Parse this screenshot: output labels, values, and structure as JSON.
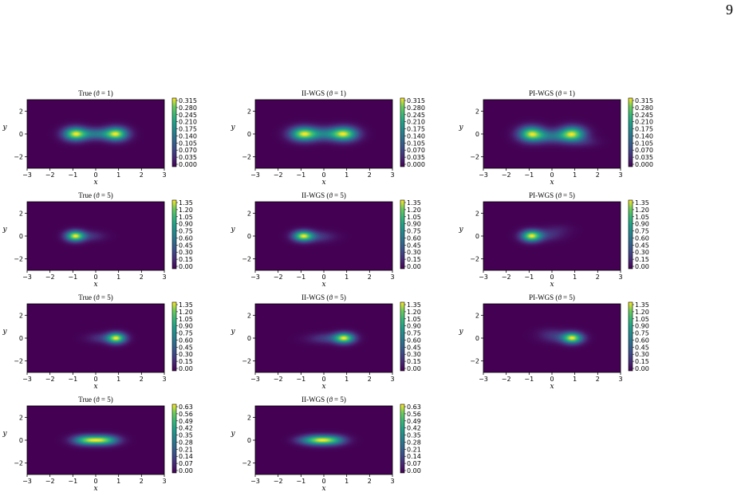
{
  "page_number": "9",
  "chart_data": [
    {
      "type": "heatmap",
      "title": "True (ϑ = 1)",
      "xlabel": "x",
      "ylabel": "y",
      "xlim": [
        -3,
        3
      ],
      "ylim": [
        -3,
        3
      ],
      "xticks": [
        "−3",
        "−2",
        "−1",
        "0",
        "1",
        "2",
        "3"
      ],
      "yticks": [
        "2",
        "0",
        "−2"
      ],
      "colorbar": {
        "min": 0,
        "max": 0.315,
        "ticks": [
          "0.315",
          "0.280",
          "0.245",
          "0.210",
          "0.175",
          "0.140",
          "0.105",
          "0.070",
          "0.035",
          "0.000"
        ]
      },
      "density": {
        "blobs": [
          {
            "x": -0.9,
            "y": 0,
            "sx": 0.35,
            "sy": 0.4,
            "w": 1
          },
          {
            "x": 0.9,
            "y": 0,
            "sx": 0.35,
            "sy": 0.4,
            "w": 1
          },
          {
            "x": 0,
            "y": 0,
            "sx": 0.5,
            "sy": 0.35,
            "w": 0.45
          }
        ]
      }
    },
    {
      "type": "heatmap",
      "title": "II-WGS (ϑ = 1)",
      "xlabel": "x",
      "ylabel": "y",
      "xlim": [
        -3,
        3
      ],
      "ylim": [
        -3,
        3
      ],
      "xticks": [
        "−3",
        "−2",
        "−1",
        "0",
        "1",
        "2",
        "3"
      ],
      "yticks": [
        "2",
        "0",
        "−2"
      ],
      "colorbar": {
        "min": 0,
        "max": 0.315,
        "ticks": [
          "0.315",
          "0.280",
          "0.245",
          "0.210",
          "0.175",
          "0.140",
          "0.105",
          "0.070",
          "0.035",
          "0.000"
        ]
      },
      "density": {
        "blobs": [
          {
            "x": -0.9,
            "y": 0,
            "sx": 0.4,
            "sy": 0.42,
            "w": 0.95
          },
          {
            "x": 0.9,
            "y": 0,
            "sx": 0.4,
            "sy": 0.42,
            "w": 0.95
          },
          {
            "x": 0,
            "y": 0,
            "sx": 0.55,
            "sy": 0.4,
            "w": 0.42
          }
        ]
      }
    },
    {
      "type": "heatmap",
      "title": "PI-WGS (ϑ = 1)",
      "xlabel": "x",
      "ylabel": "y",
      "xlim": [
        -3,
        3
      ],
      "ylim": [
        -3,
        3
      ],
      "xticks": [
        "−3",
        "−2",
        "−1",
        "0",
        "1",
        "2",
        "3"
      ],
      "yticks": [
        "2",
        "0",
        "−2"
      ],
      "colorbar": {
        "min": 0,
        "max": 0.315,
        "ticks": [
          "0.315",
          "0.280",
          "0.245",
          "0.210",
          "0.175",
          "0.140",
          "0.105",
          "0.070",
          "0.035",
          "0.000"
        ]
      },
      "density": {
        "blobs": [
          {
            "x": -0.9,
            "y": 0,
            "sx": 0.38,
            "sy": 0.45,
            "w": 0.95
          },
          {
            "x": 0.9,
            "y": 0,
            "sx": 0.38,
            "sy": 0.45,
            "w": 0.95
          },
          {
            "x": 0,
            "y": -0.2,
            "sx": 0.6,
            "sy": 0.4,
            "w": 0.4
          },
          {
            "x": 1.5,
            "y": -0.7,
            "sx": 0.4,
            "sy": 0.3,
            "w": 0.1
          }
        ]
      }
    },
    {
      "type": "heatmap",
      "title": "True (ϑ = 5)",
      "xlabel": "x",
      "ylabel": "y",
      "xlim": [
        -3,
        3
      ],
      "ylim": [
        -3,
        3
      ],
      "xticks": [
        "−3",
        "−2",
        "−1",
        "0",
        "1",
        "2",
        "3"
      ],
      "yticks": [
        "2",
        "0",
        "−2"
      ],
      "colorbar": {
        "min": 0,
        "max": 1.35,
        "ticks": [
          "1.35",
          "1.20",
          "1.05",
          "0.90",
          "0.75",
          "0.60",
          "0.45",
          "0.30",
          "0.15",
          "0.00"
        ]
      },
      "density": {
        "blobs": [
          {
            "x": -0.9,
            "y": 0,
            "sx": 0.28,
            "sy": 0.32,
            "w": 1
          },
          {
            "x": -0.3,
            "y": 0,
            "sx": 0.45,
            "sy": 0.3,
            "w": 0.18
          }
        ]
      }
    },
    {
      "type": "heatmap",
      "title": "II-WGS (ϑ = 5)",
      "xlabel": "x",
      "ylabel": "y",
      "xlim": [
        -3,
        3
      ],
      "ylim": [
        -3,
        3
      ],
      "xticks": [
        "−3",
        "−2",
        "−1",
        "0",
        "1",
        "2",
        "3"
      ],
      "yticks": [
        "2",
        "0",
        "−2"
      ],
      "colorbar": {
        "min": 0,
        "max": 1.35,
        "ticks": [
          "1.35",
          "1.20",
          "1.05",
          "0.90",
          "0.75",
          "0.60",
          "0.45",
          "0.30",
          "0.15",
          "0.00"
        ]
      },
      "density": {
        "blobs": [
          {
            "x": -0.9,
            "y": 0,
            "sx": 0.3,
            "sy": 0.32,
            "w": 0.9
          },
          {
            "x": -0.3,
            "y": -0.05,
            "sx": 0.5,
            "sy": 0.32,
            "w": 0.2
          }
        ]
      }
    },
    {
      "type": "heatmap",
      "title": "PI-WGS (ϑ = 5)",
      "xlabel": "x",
      "ylabel": "y",
      "xlim": [
        -3,
        3
      ],
      "ylim": [
        -3,
        3
      ],
      "xticks": [
        "−3",
        "−2",
        "−1",
        "0",
        "1",
        "2",
        "3"
      ],
      "yticks": [
        "2",
        "0",
        "−2"
      ],
      "colorbar": {
        "min": 0,
        "max": 1.35,
        "ticks": [
          "1.35",
          "1.20",
          "1.05",
          "0.90",
          "0.75",
          "0.60",
          "0.45",
          "0.30",
          "0.15",
          "0.00"
        ]
      },
      "density": {
        "blobs": [
          {
            "x": -0.9,
            "y": 0,
            "sx": 0.3,
            "sy": 0.34,
            "w": 0.9
          },
          {
            "x": -0.3,
            "y": 0.1,
            "sx": 0.5,
            "sy": 0.35,
            "w": 0.18
          },
          {
            "x": 0.3,
            "y": 0.6,
            "sx": 0.4,
            "sy": 0.3,
            "w": 0.06
          }
        ]
      }
    },
    {
      "type": "heatmap",
      "title": "True (ϑ = 5)",
      "xlabel": "x",
      "ylabel": "y",
      "xlim": [
        -3,
        3
      ],
      "ylim": [
        -3,
        3
      ],
      "xticks": [
        "−3",
        "−2",
        "−1",
        "0",
        "1",
        "2",
        "3"
      ],
      "yticks": [
        "2",
        "0",
        "−2"
      ],
      "colorbar": {
        "min": 0,
        "max": 1.35,
        "ticks": [
          "1.35",
          "1.20",
          "1.05",
          "0.90",
          "0.75",
          "0.60",
          "0.45",
          "0.30",
          "0.15",
          "0.00"
        ]
      },
      "density": {
        "blobs": [
          {
            "x": 0.9,
            "y": 0,
            "sx": 0.28,
            "sy": 0.32,
            "w": 1
          },
          {
            "x": 0.3,
            "y": 0,
            "sx": 0.45,
            "sy": 0.3,
            "w": 0.18
          }
        ]
      }
    },
    {
      "type": "heatmap",
      "title": "II-WGS (ϑ = 5)",
      "xlabel": "x",
      "ylabel": "y",
      "xlim": [
        -3,
        3
      ],
      "ylim": [
        -3,
        3
      ],
      "xticks": [
        "−3",
        "−2",
        "−1",
        "0",
        "1",
        "2",
        "3"
      ],
      "yticks": [
        "2",
        "0",
        "−2"
      ],
      "colorbar": {
        "min": 0,
        "max": 1.35,
        "ticks": [
          "1.35",
          "1.20",
          "1.05",
          "0.90",
          "0.75",
          "0.60",
          "0.45",
          "0.30",
          "0.15",
          "0.00"
        ]
      },
      "density": {
        "blobs": [
          {
            "x": 0.9,
            "y": 0,
            "sx": 0.3,
            "sy": 0.32,
            "w": 0.9
          },
          {
            "x": 0.3,
            "y": 0,
            "sx": 0.5,
            "sy": 0.3,
            "w": 0.2
          },
          {
            "x": -0.3,
            "y": -0.1,
            "sx": 0.5,
            "sy": 0.3,
            "w": 0.05
          }
        ]
      }
    },
    {
      "type": "heatmap",
      "title": "PI-WGS (ϑ = 5)",
      "xlabel": "x",
      "ylabel": "y",
      "xlim": [
        -3,
        3
      ],
      "ylim": [
        -3,
        3
      ],
      "xticks": [
        "−3",
        "−2",
        "−1",
        "0",
        "1",
        "2",
        "3"
      ],
      "yticks": [
        "2",
        "0",
        "−2"
      ],
      "colorbar": {
        "min": 0,
        "max": 1.35,
        "ticks": [
          "1.35",
          "1.20",
          "1.05",
          "0.90",
          "0.75",
          "0.60",
          "0.45",
          "0.30",
          "0.15",
          "0.00"
        ]
      },
      "density": {
        "blobs": [
          {
            "x": 0.9,
            "y": 0,
            "sx": 0.3,
            "sy": 0.33,
            "w": 0.9
          },
          {
            "x": 0.3,
            "y": 0.1,
            "sx": 0.5,
            "sy": 0.35,
            "w": 0.18
          },
          {
            "x": -0.1,
            "y": 0.5,
            "sx": 0.4,
            "sy": 0.3,
            "w": 0.06
          }
        ]
      }
    },
    {
      "type": "heatmap",
      "title": "True (ϑ = 5)",
      "xlabel": "x",
      "ylabel": "y",
      "xlim": [
        -3,
        3
      ],
      "ylim": [
        -3,
        3
      ],
      "xticks": [
        "−3",
        "−2",
        "−1",
        "0",
        "1",
        "2",
        "3"
      ],
      "yticks": [
        "2",
        "0",
        "−2"
      ],
      "colorbar": {
        "min": 0,
        "max": 0.63,
        "ticks": [
          "0.63",
          "0.56",
          "0.49",
          "0.42",
          "0.35",
          "0.28",
          "0.21",
          "0.14",
          "0.07",
          "0.00"
        ]
      },
      "density": {
        "blobs": [
          {
            "x": -0.45,
            "y": 0,
            "sx": 0.4,
            "sy": 0.3,
            "w": 0.8
          },
          {
            "x": 0.45,
            "y": 0,
            "sx": 0.4,
            "sy": 0.3,
            "w": 0.8
          },
          {
            "x": 0,
            "y": 0,
            "sx": 0.4,
            "sy": 0.28,
            "w": 0.4
          }
        ]
      }
    },
    {
      "type": "heatmap",
      "title": "II-WGS (ϑ = 5)",
      "xlabel": "x",
      "ylabel": "y",
      "xlim": [
        -3,
        3
      ],
      "ylim": [
        -3,
        3
      ],
      "xticks": [
        "−3",
        "−2",
        "−1",
        "0",
        "1",
        "2",
        "3"
      ],
      "yticks": [
        "2",
        "0",
        "−2"
      ],
      "colorbar": {
        "min": 0,
        "max": 0.63,
        "ticks": [
          "0.63",
          "0.56",
          "0.49",
          "0.42",
          "0.35",
          "0.28",
          "0.21",
          "0.14",
          "0.07",
          "0.00"
        ]
      },
      "density": {
        "blobs": [
          {
            "x": -0.4,
            "y": 0,
            "sx": 0.4,
            "sy": 0.3,
            "w": 0.8
          },
          {
            "x": 0.4,
            "y": 0,
            "sx": 0.4,
            "sy": 0.3,
            "w": 0.7
          },
          {
            "x": 0,
            "y": 0,
            "sx": 0.4,
            "sy": 0.28,
            "w": 0.4
          },
          {
            "x": -1.0,
            "y": 0,
            "sx": 0.3,
            "sy": 0.25,
            "w": 0.15
          }
        ]
      }
    }
  ]
}
